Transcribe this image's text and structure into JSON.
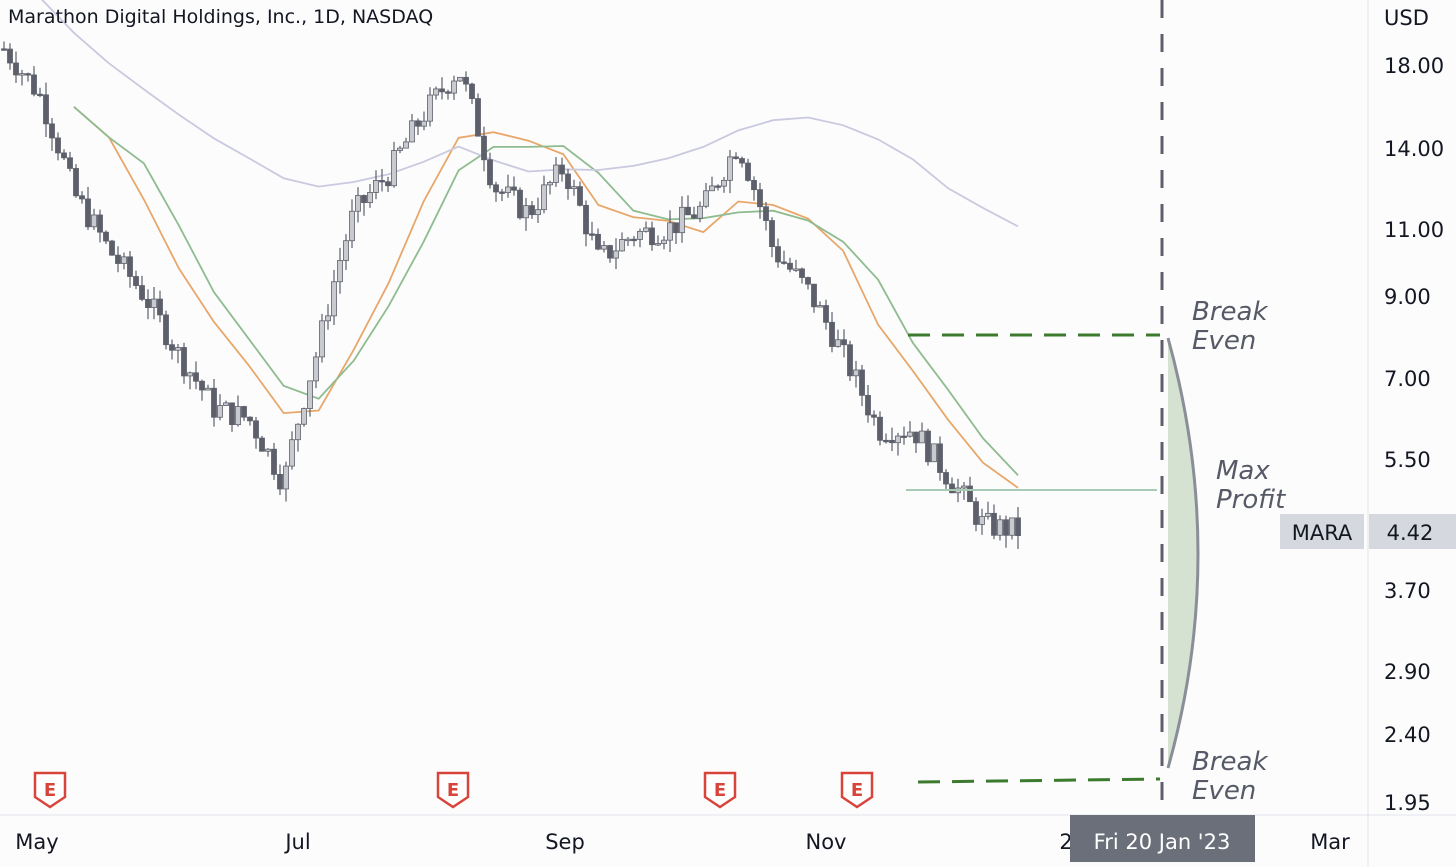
{
  "header": {
    "title": "Marathon Digital Holdings, Inc., 1D, NASDAQ"
  },
  "price_axis": {
    "currency": "USD",
    "ticks": [
      "18.00",
      "14.00",
      "11.00",
      "9.00",
      "7.00",
      "5.50",
      "3.70",
      "2.90",
      "2.40",
      "1.95"
    ]
  },
  "time_axis": {
    "ticks": [
      "May",
      "Jul",
      "Sep",
      "Nov",
      "2",
      "Mar"
    ],
    "crosshair_date": "Fri 20 Jan '23"
  },
  "symbol_badge": {
    "symbol": "MARA",
    "price": "4.42"
  },
  "annotations": {
    "break_even_top": [
      "Break",
      "Even"
    ],
    "max_profit": [
      "Max",
      "Profit"
    ],
    "break_even_bottom": [
      "Break",
      "Even"
    ]
  },
  "earnings_markers": [
    "E",
    "E",
    "E",
    "E"
  ],
  "colors": {
    "background": "#fcfcfd",
    "candle": "#5d606b",
    "candle_light": "#c8cad0",
    "ma_orange": "#e8a76a",
    "ma_green": "#8fbc8f",
    "ma_lavender": "#c9c9e0",
    "dashed_green": "#3c7a2e",
    "profit_fill": "#d5e2d1",
    "earnings_red": "#d9443a",
    "crosshair_badge": "#6b6f7a"
  },
  "chart_data": {
    "type": "candlestick",
    "title": "Marathon Digital Holdings, Inc., 1D, NASDAQ",
    "y_axis": {
      "unit": "USD",
      "scale": "log",
      "range": [
        1.85,
        20.5
      ]
    },
    "x_axis": {
      "ticks": [
        "May",
        "Jul",
        "Sep",
        "Nov",
        "2",
        "Mar"
      ]
    },
    "last_price": 4.42,
    "series": [
      {
        "name": "MARA",
        "type": "candlestick",
        "sampled_closes": [
          {
            "date": "2022-04-20",
            "close": 18.9
          },
          {
            "date": "2022-05-05",
            "close": 16.5
          },
          {
            "date": "2022-05-10",
            "close": 12.2
          },
          {
            "date": "2022-05-20",
            "close": 10.3
          },
          {
            "date": "2022-06-01",
            "close": 9.0
          },
          {
            "date": "2022-06-10",
            "close": 7.5
          },
          {
            "date": "2022-06-20",
            "close": 6.4
          },
          {
            "date": "2022-06-30",
            "close": 6.2
          },
          {
            "date": "2022-07-07",
            "close": 5.1
          },
          {
            "date": "2022-07-15",
            "close": 7.7
          },
          {
            "date": "2022-07-22",
            "close": 11.5
          },
          {
            "date": "2022-08-01",
            "close": 13.0
          },
          {
            "date": "2022-08-08",
            "close": 15.5
          },
          {
            "date": "2022-08-15",
            "close": 17.8
          },
          {
            "date": "2022-08-22",
            "close": 12.5
          },
          {
            "date": "2022-09-01",
            "close": 11.5
          },
          {
            "date": "2022-09-12",
            "close": 13.2
          },
          {
            "date": "2022-09-22",
            "close": 10.0
          },
          {
            "date": "2022-10-05",
            "close": 10.8
          },
          {
            "date": "2022-10-17",
            "close": 11.0
          },
          {
            "date": "2022-10-25",
            "close": 11.7
          },
          {
            "date": "2022-11-01",
            "close": 14.2
          },
          {
            "date": "2022-11-08",
            "close": 10.3
          },
          {
            "date": "2022-11-15",
            "close": 9.1
          },
          {
            "date": "2022-11-22",
            "close": 7.5
          },
          {
            "date": "2022-12-01",
            "close": 6.0
          },
          {
            "date": "2022-12-08",
            "close": 6.0
          },
          {
            "date": "2022-12-15",
            "close": 5.2
          },
          {
            "date": "2022-12-21",
            "close": 4.5
          },
          {
            "date": "2022-12-28",
            "close": 4.42
          }
        ]
      },
      {
        "name": "",
        "type": "line",
        "color": "#e8a76a"
      },
      {
        "name": "",
        "type": "line",
        "color": "#8fbc8f"
      },
      {
        "name": "",
        "type": "line",
        "color": "#c9c9e0"
      }
    ],
    "levels": [
      {
        "label": "Break Even",
        "price": 8.05
      },
      {
        "label": "Max Profit",
        "price": 5.0
      },
      {
        "label": "Break Even",
        "price": 2.0
      }
    ],
    "earnings_events": 4,
    "grid": false,
    "legend": "none"
  }
}
